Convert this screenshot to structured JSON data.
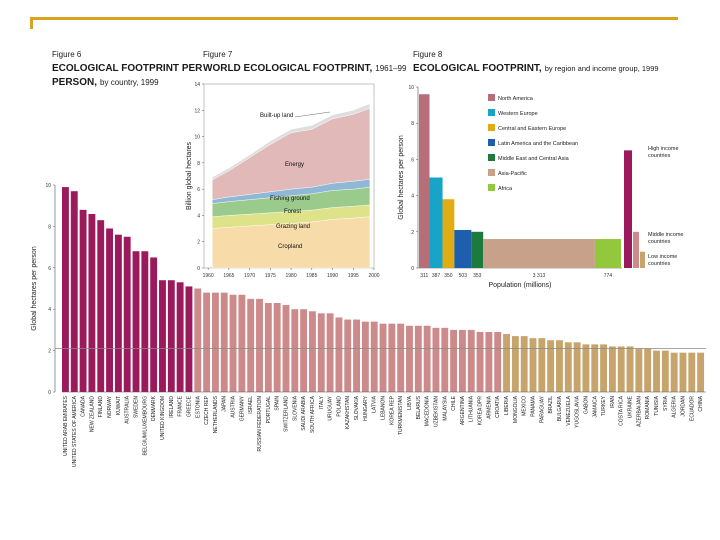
{
  "colors": {
    "accent": "#d9a520",
    "high": "#9b1a5c",
    "middle": "#cc8a8a",
    "low": "#c7a46b",
    "north_america": "#b86e79",
    "western_europe": "#18a4c9",
    "central_eastern_europe": "#e0ac14",
    "latin_america": "#1d5fad",
    "middle_east": "#1b7a3c",
    "asia_pacific": "#c7a189",
    "africa": "#92c83e",
    "builtup": "#dedede",
    "energy": "#e2b9b9",
    "fishing": "#8fb8d6",
    "forest": "#9acb8c",
    "grazing": "#dee38a",
    "cropland": "#f7dba8"
  },
  "chart_data": [
    {
      "id": "fig6",
      "type": "bar",
      "title_line1": "Figure 6",
      "title_line2": "ECOLOGICAL FOOTPRINT PER",
      "title_line3": "PERSON,",
      "title_suffix": "by country, 1999",
      "ylabel": "Global hectares per person",
      "ylim": [
        0,
        10
      ],
      "yticks": [
        "0",
        "2",
        "4",
        "6",
        "8",
        "10"
      ],
      "categories": [
        "UNITED ARAB EMIRATES",
        "UNITED STATES OF AMERICA",
        "CANADA",
        "NEW ZEALAND",
        "FINLAND",
        "NORWAY",
        "KUWAIT",
        "AUSTRALIA",
        "SWEDEN",
        "BELGIUM/LUXEMBOURG",
        "DENMARK",
        "UNITED KINGDOM",
        "IRELAND",
        "FRANCE",
        "GREECE",
        "ESTONIA",
        "CZECH REP",
        "NETHERLANDS",
        "JAPAN",
        "AUSTRIA",
        "GERMANY",
        "ISRAEL",
        "RUSSIAN FEDERATION",
        "PORTUGAL",
        "SPAIN",
        "SWITZERLAND",
        "SLOVENIA",
        "SAUDI ARABIA",
        "SOUTH AFRICA",
        "ITALY",
        "URUGUAY",
        "POLAND",
        "KAZAKHSTAN",
        "SLOVAKIA",
        "HUNGARY",
        "LATVIA",
        "LEBANON",
        "KOREA REP",
        "TURKMENISTAN",
        "LIBYA",
        "BELARUS",
        "MACEDONIA",
        "UZBEKISTAN",
        "MALAYSIA",
        "CHILE",
        "ARGENTINA",
        "LITHUANIA",
        "KOREA DPR",
        "ARMENIA",
        "CROATIA",
        "LIBERIA",
        "MONGOLIA",
        "MEXICO",
        "PANAMA",
        "PARAGUAY",
        "BRAZIL",
        "BULGARIA",
        "VENEZUELA",
        "YUGOSLAVIA",
        "GABON",
        "JAMAICA",
        "TURKEY",
        "IRAN",
        "COSTA RICA",
        "UKRAINE",
        "AZERBAIJAN",
        "ROMANIA",
        "TUNISIA",
        "SYRIA",
        "ALGERIA",
        "JORDAN",
        "ECUADOR",
        "CHINA"
      ],
      "groups": [
        "high",
        "high",
        "high",
        "high",
        "high",
        "high",
        "high",
        "high",
        "high",
        "high",
        "high",
        "high",
        "high",
        "high",
        "high",
        "middle",
        "middle",
        "middle",
        "middle",
        "middle",
        "middle",
        "middle",
        "middle",
        "middle",
        "middle",
        "middle",
        "middle",
        "middle",
        "middle",
        "middle",
        "middle",
        "middle",
        "middle",
        "middle",
        "middle",
        "middle",
        "middle",
        "middle",
        "middle",
        "middle",
        "middle",
        "middle",
        "middle",
        "middle",
        "middle",
        "middle",
        "middle",
        "middle",
        "middle",
        "middle",
        "low",
        "low",
        "low",
        "low",
        "low",
        "low",
        "low",
        "low",
        "low",
        "low",
        "low",
        "low",
        "low",
        "low",
        "low",
        "low",
        "low",
        "low",
        "low",
        "low",
        "low",
        "low",
        "low"
      ],
      "values": [
        9.9,
        9.7,
        8.8,
        8.6,
        8.3,
        7.9,
        7.6,
        7.5,
        6.8,
        6.8,
        6.5,
        5.4,
        5.4,
        5.3,
        5.1,
        5.0,
        4.8,
        4.8,
        4.8,
        4.7,
        4.7,
        4.5,
        4.5,
        4.3,
        4.3,
        4.2,
        4.0,
        4.0,
        3.9,
        3.8,
        3.8,
        3.6,
        3.5,
        3.5,
        3.4,
        3.4,
        3.3,
        3.3,
        3.3,
        3.2,
        3.2,
        3.2,
        3.1,
        3.1,
        3.0,
        3.0,
        3.0,
        2.9,
        2.9,
        2.9,
        2.8,
        2.7,
        2.7,
        2.6,
        2.6,
        2.5,
        2.5,
        2.4,
        2.4,
        2.3,
        2.3,
        2.3,
        2.2,
        2.2,
        2.2,
        2.1,
        2.1,
        2.0,
        2.0,
        1.9,
        1.9,
        1.9,
        1.9
      ],
      "reference_line": 2.1
    },
    {
      "id": "fig7",
      "type": "area",
      "title_line1": "Figure 7",
      "title_line2": "WORLD ECOLOGICAL FOOTPRINT,",
      "title_suffix": "1961–99",
      "ylabel": "Billion global hectares",
      "ylim": [
        0,
        14
      ],
      "yticks": [
        "0",
        "2",
        "4",
        "6",
        "8",
        "10",
        "12",
        "14"
      ],
      "xticks": [
        "1960",
        "1965",
        "1970",
        "1975",
        "1980",
        "1985",
        "1990",
        "1995",
        "2000"
      ],
      "x": [
        1961,
        1965,
        1970,
        1975,
        1980,
        1985,
        1990,
        1995,
        1999
      ],
      "series": [
        {
          "name": "Cropland",
          "values": [
            3.0,
            3.1,
            3.2,
            3.3,
            3.4,
            3.5,
            3.7,
            3.8,
            3.9
          ]
        },
        {
          "name": "Grazing land",
          "values": [
            0.9,
            0.9,
            0.9,
            0.9,
            0.9,
            0.9,
            0.9,
            0.9,
            0.9
          ]
        },
        {
          "name": "Forest",
          "values": [
            1.0,
            1.05,
            1.1,
            1.15,
            1.2,
            1.25,
            1.3,
            1.3,
            1.35
          ]
        },
        {
          "name": "Fishing ground",
          "values": [
            0.3,
            0.35,
            0.4,
            0.45,
            0.5,
            0.5,
            0.55,
            0.6,
            0.6
          ]
        },
        {
          "name": "Energy",
          "values": [
            1.5,
            2.0,
            2.8,
            3.6,
            4.3,
            4.4,
            4.9,
            5.1,
            5.4
          ]
        },
        {
          "name": "Built-up land",
          "values": [
            0.2,
            0.2,
            0.2,
            0.25,
            0.25,
            0.3,
            0.3,
            0.3,
            0.35
          ]
        }
      ],
      "labels": {
        "builtup": "Built-up land",
        "energy": "Energy",
        "fishing": "Fishing ground",
        "forest": "Forest",
        "grazing": "Grazing land",
        "cropland": "Cropland"
      }
    },
    {
      "id": "fig8",
      "type": "bar",
      "title_line1": "Figure 8",
      "title_line2": "ECOLOGICAL FOOTPRINT,",
      "title_suffix": "by region and income group, 1999",
      "ylabel": "Global hectares per person",
      "xlabel": "Population (millions)",
      "ylim": [
        0,
        10
      ],
      "yticks": [
        "0",
        "2",
        "4",
        "6",
        "8",
        "10"
      ],
      "regions": [
        {
          "name": "North America",
          "population": 311,
          "pop_label": "311",
          "value": 9.6,
          "color_key": "north_america"
        },
        {
          "name": "Western Europe",
          "population": 387,
          "pop_label": "387",
          "value": 5.0,
          "color_key": "western_europe"
        },
        {
          "name": "Central and Eastern Europe",
          "population": 350,
          "pop_label": "350",
          "value": 3.8,
          "color_key": "central_eastern_europe"
        },
        {
          "name": "Latin America and the Caribbean",
          "population": 503,
          "pop_label": "503",
          "value": 2.1,
          "color_key": "latin_america"
        },
        {
          "name": "Middle East and Central Asia",
          "population": 353,
          "pop_label": "353",
          "value": 2.0,
          "color_key": "middle_east"
        },
        {
          "name": "Asia-Pacific",
          "population": 3313,
          "pop_label": "3 313",
          "value": 1.6,
          "color_key": "asia_pacific"
        },
        {
          "name": "Africa",
          "population": 774,
          "pop_label": "774",
          "value": 1.6,
          "color_key": "africa"
        }
      ],
      "income_groups": [
        {
          "label_line1": "High income",
          "label_line2": "countries",
          "value": 6.5,
          "color_key": "high"
        },
        {
          "label_line1": "Middle income",
          "label_line2": "countries",
          "value": 2.0,
          "color_key": "middle"
        },
        {
          "label_line1": "Low income",
          "label_line2": "countries",
          "value": 0.9,
          "color_key": "low"
        }
      ]
    }
  ]
}
